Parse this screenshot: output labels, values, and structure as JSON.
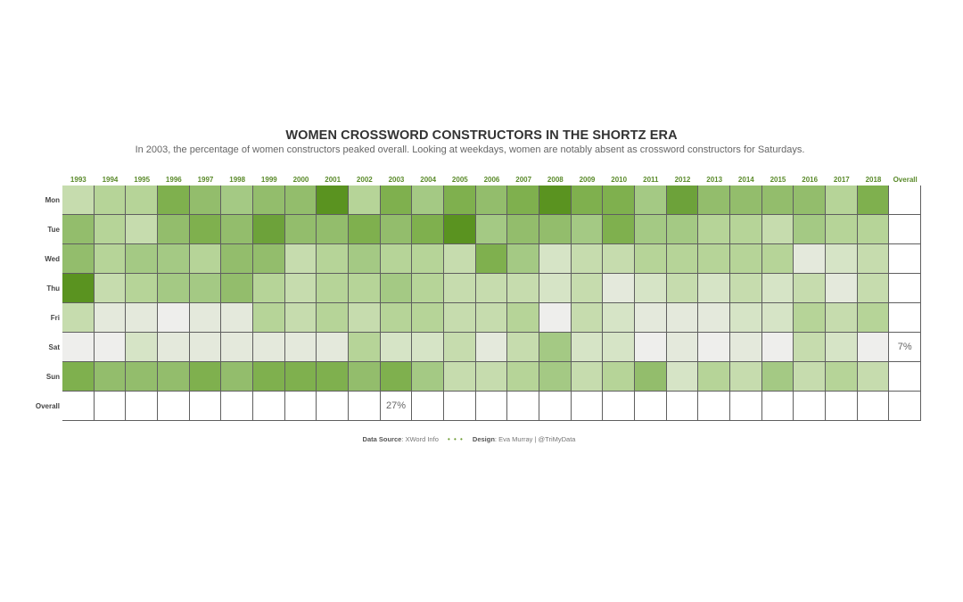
{
  "title": "WOMEN CROSSWORD CONSTRUCTORS IN THE SHORTZ ERA",
  "subtitle": "In 2003, the percentage of women constructors peaked overall. Looking at weekdays, women are notably absent as crossword constructors for Saturdays.",
  "footer": {
    "source_label": "Data Source",
    "source_value": ": XWord Info",
    "separator": "• • •",
    "design_label": "Design",
    "design_value": ": Eva Murray | @TriMyData"
  },
  "colors": {
    "header_text": "#5a8a2a",
    "scale": [
      "#eeeeec",
      "#e4e9dc",
      "#d6e4c6",
      "#c6dcae",
      "#b6d498",
      "#a4c984",
      "#93bd6c",
      "#7fb04e",
      "#6da23a",
      "#5a9320"
    ]
  },
  "chart_data": {
    "type": "heatmap",
    "title": "WOMEN CROSSWORD CONSTRUCTORS IN THE SHORTZ ERA",
    "subtitle": "In 2003, the percentage of women constructors peaked overall. Looking at weekdays, women are notably absent as crossword constructors for Saturdays.",
    "x": [
      "1993",
      "1994",
      "1995",
      "1996",
      "1997",
      "1998",
      "1999",
      "2000",
      "2001",
      "2002",
      "2003",
      "2004",
      "2005",
      "2006",
      "2007",
      "2008",
      "2009",
      "2010",
      "2011",
      "2012",
      "2013",
      "2014",
      "2015",
      "2016",
      "2017",
      "2018",
      "Overall"
    ],
    "y": [
      "Mon",
      "Tue",
      "Wed",
      "Thu",
      "Fri",
      "Sat",
      "Sun",
      "Overall"
    ],
    "value_scale_note": "intensity level 0 (lightest) to 9 (darkest green); null = blank cell",
    "values": [
      [
        3,
        4,
        4,
        7,
        6,
        5,
        6,
        6,
        9,
        4,
        7,
        5,
        7,
        6,
        7,
        9,
        7,
        7,
        5,
        8,
        6,
        6,
        6,
        6,
        4,
        7,
        null
      ],
      [
        6,
        4,
        3,
        6,
        7,
        6,
        8,
        6,
        6,
        7,
        6,
        7,
        9,
        5,
        6,
        6,
        5,
        7,
        5,
        5,
        4,
        4,
        3,
        5,
        4,
        4,
        null
      ],
      [
        6,
        4,
        5,
        5,
        4,
        6,
        6,
        3,
        4,
        5,
        4,
        4,
        3,
        7,
        5,
        2,
        3,
        3,
        4,
        4,
        4,
        4,
        4,
        1,
        2,
        3,
        null
      ],
      [
        9,
        3,
        4,
        5,
        5,
        6,
        4,
        3,
        4,
        4,
        5,
        4,
        3,
        3,
        3,
        2,
        3,
        1,
        2,
        3,
        2,
        3,
        2,
        3,
        1,
        3,
        null
      ],
      [
        3,
        1,
        1,
        0,
        1,
        1,
        4,
        3,
        4,
        3,
        4,
        4,
        3,
        3,
        4,
        0,
        3,
        2,
        1,
        1,
        1,
        2,
        2,
        4,
        3,
        4,
        null
      ],
      [
        0,
        0,
        2,
        1,
        1,
        1,
        1,
        1,
        1,
        4,
        2,
        2,
        3,
        1,
        3,
        5,
        2,
        2,
        0,
        1,
        0,
        1,
        0,
        3,
        2,
        0,
        null
      ],
      [
        7,
        6,
        6,
        6,
        7,
        6,
        7,
        7,
        7,
        6,
        7,
        5,
        3,
        3,
        4,
        5,
        3,
        4,
        6,
        2,
        4,
        3,
        5,
        3,
        4,
        3,
        null
      ],
      [
        null,
        null,
        null,
        null,
        null,
        null,
        null,
        null,
        null,
        null,
        null,
        null,
        null,
        null,
        null,
        null,
        null,
        null,
        null,
        null,
        null,
        null,
        null,
        null,
        null,
        null,
        null
      ]
    ],
    "annotations": [
      {
        "row": "Overall",
        "col": "2003",
        "text": "27%"
      },
      {
        "row": "Sat",
        "col": "Overall",
        "text": "7%"
      }
    ],
    "legend": "none",
    "grid": true
  }
}
